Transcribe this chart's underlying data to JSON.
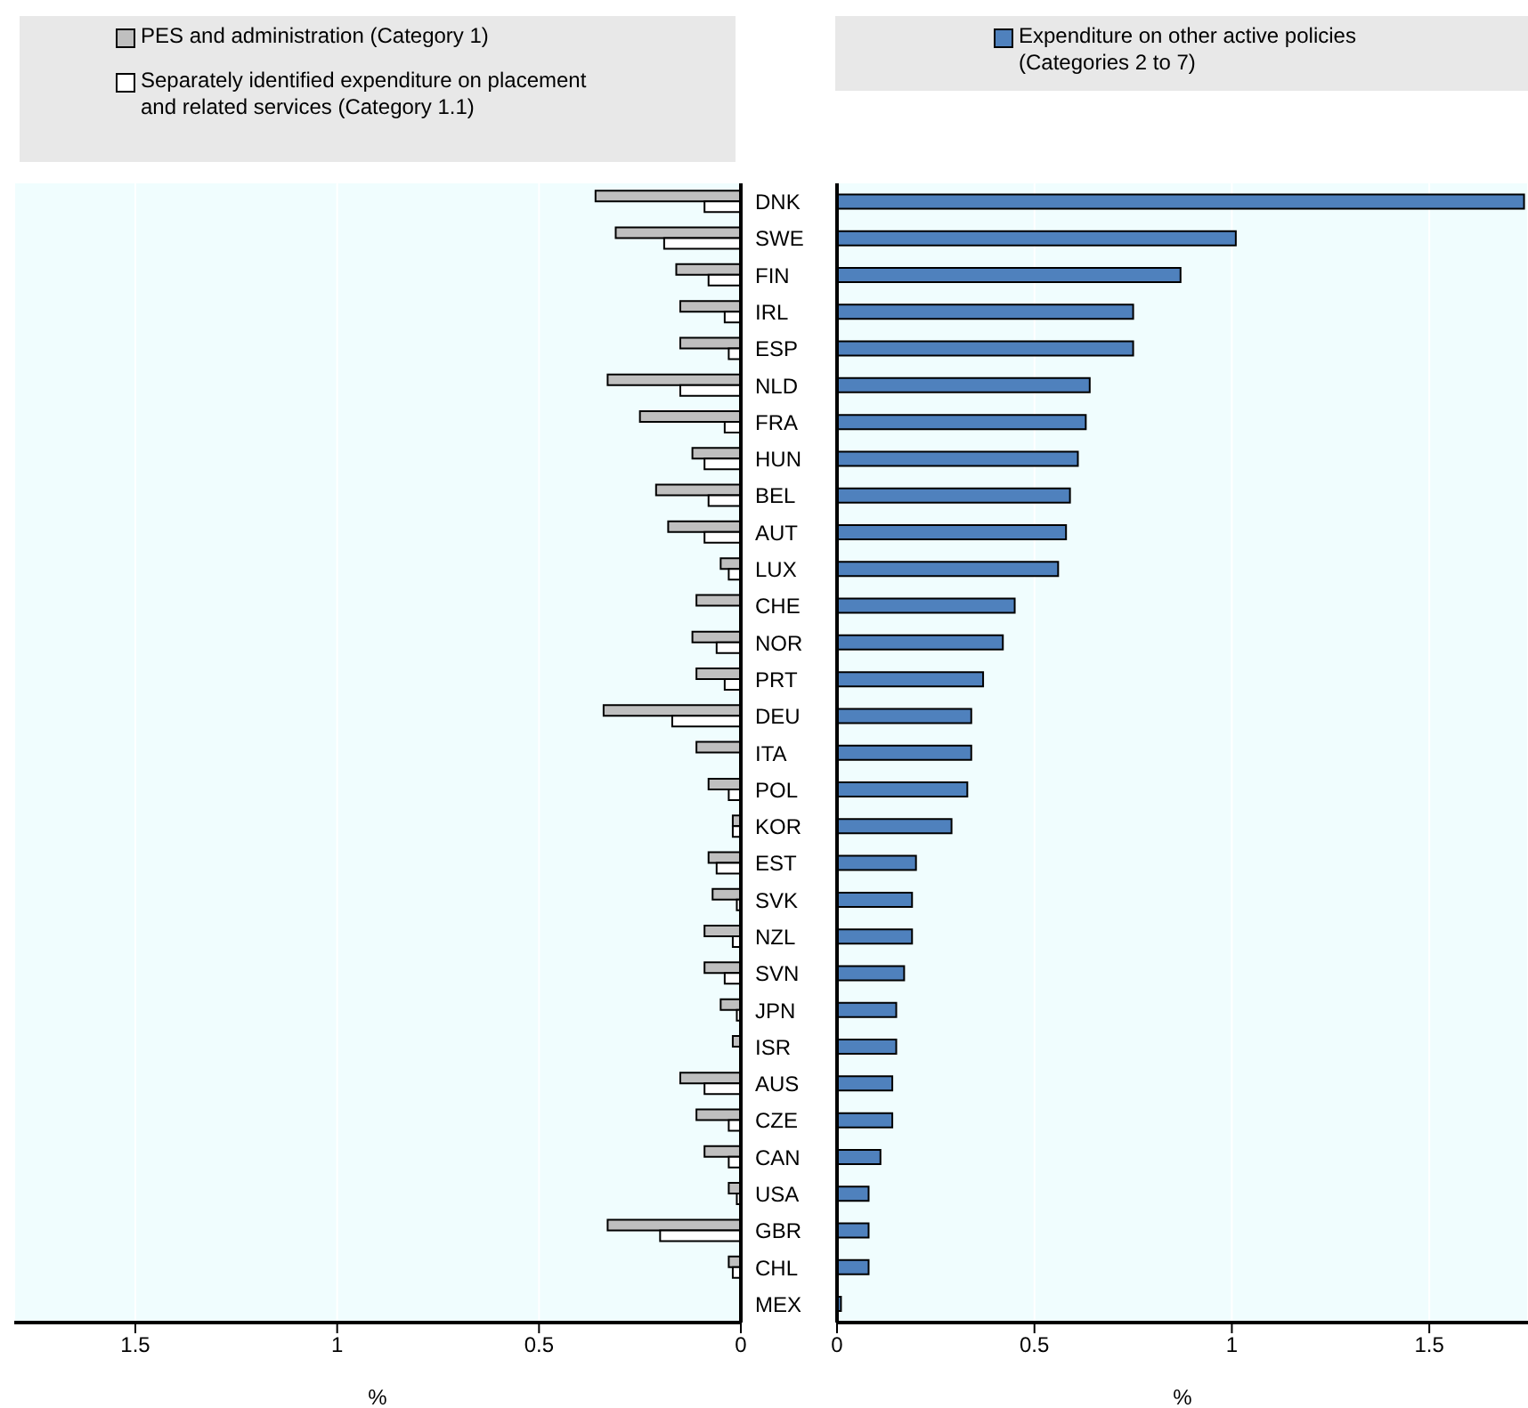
{
  "chart_data": [
    {
      "type": "bar",
      "orientation": "horizontal",
      "categories": [
        "DNK",
        "SWE",
        "FIN",
        "IRL",
        "ESP",
        "NLD",
        "FRA",
        "HUN",
        "BEL",
        "AUT",
        "LUX",
        "CHE",
        "NOR",
        "PRT",
        "DEU",
        "ITA",
        "POL",
        "KOR",
        "EST",
        "SVK",
        "NZL",
        "SVN",
        "JPN",
        "ISR",
        "AUS",
        "CZE",
        "CAN",
        "USA",
        "GBR",
        "CHL",
        "MEX"
      ],
      "series": [
        {
          "name": "PES and administration (Category 1)",
          "color": "#bfbfbf",
          "values": [
            0.36,
            0.31,
            0.16,
            0.15,
            0.15,
            0.33,
            0.25,
            0.12,
            0.21,
            0.18,
            0.05,
            0.11,
            0.12,
            0.11,
            0.34,
            0.11,
            0.08,
            0.02,
            0.08,
            0.07,
            0.09,
            0.09,
            0.05,
            0.02,
            0.15,
            0.11,
            0.09,
            0.03,
            0.33,
            0.03,
            0
          ]
        },
        {
          "name": "Separately identified expenditure on placement and related services (Category 1.1)",
          "color": "#ffffff",
          "values": [
            0.09,
            0.19,
            0.08,
            0.04,
            0.03,
            0.15,
            0.04,
            0.09,
            0.08,
            0.09,
            0.03,
            0,
            0.06,
            0.04,
            0.17,
            0,
            0.03,
            0.02,
            0.06,
            0.01,
            0.02,
            0.04,
            0.01,
            0,
            0.09,
            0.03,
            0.03,
            0.01,
            0.2,
            0.02,
            0
          ]
        }
      ],
      "xlim": [
        1.8,
        0
      ],
      "xticks": [
        1.5,
        1,
        0.5,
        0
      ],
      "xlabel": "%",
      "grid": "x",
      "legend": "top"
    },
    {
      "type": "bar",
      "orientation": "horizontal",
      "series": [
        {
          "name": "Expenditure on other active policies (Categories 2 to 7)",
          "color": "#4f81bd",
          "values": [
            1.74,
            1.01,
            0.87,
            0.75,
            0.75,
            0.64,
            0.63,
            0.61,
            0.59,
            0.58,
            0.56,
            0.45,
            0.42,
            0.37,
            0.34,
            0.34,
            0.33,
            0.29,
            0.2,
            0.19,
            0.19,
            0.17,
            0.15,
            0.15,
            0.14,
            0.14,
            0.11,
            0.08,
            0.08,
            0.08,
            0.01
          ]
        }
      ],
      "xlim": [
        0,
        1.75
      ],
      "xticks": [
        0,
        0.5,
        1,
        1.5
      ],
      "xlabel": "%",
      "grid": "x",
      "legend": "top",
      "tick_labels": "x"
    }
  ]
}
